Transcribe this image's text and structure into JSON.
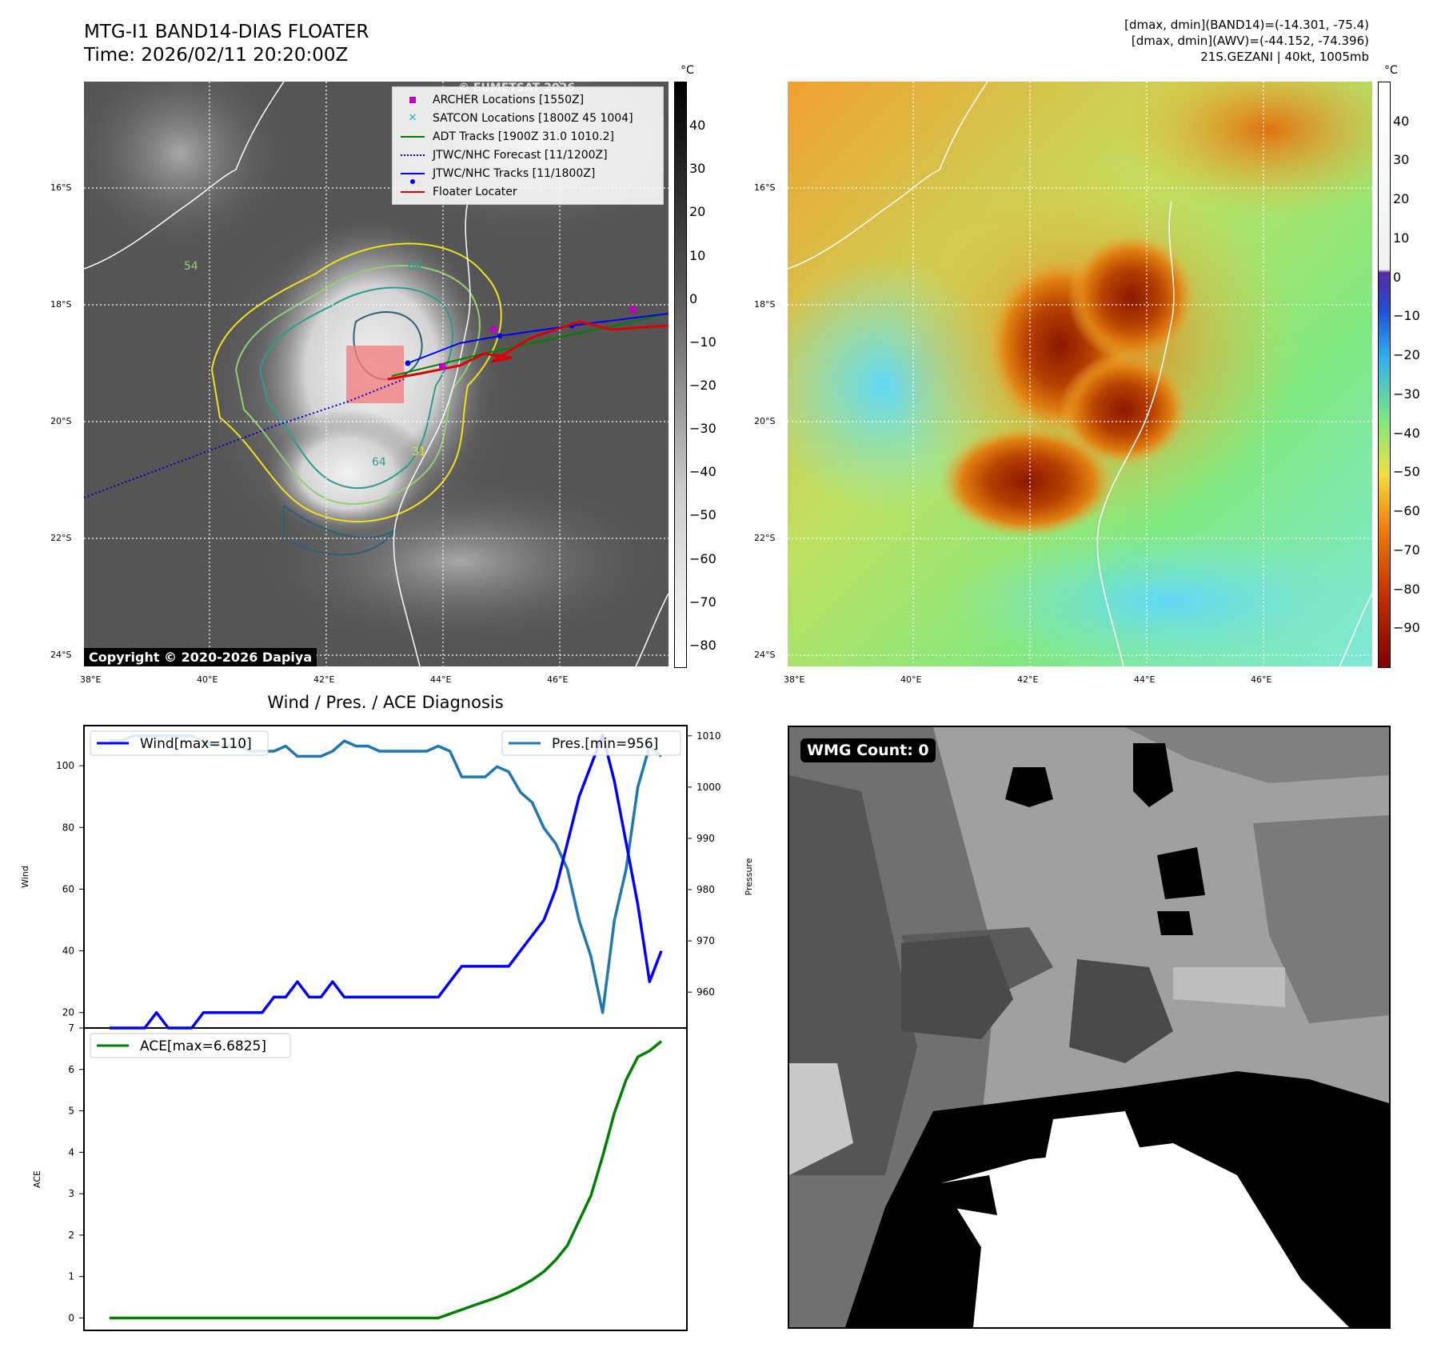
{
  "header": {
    "title": "MTG-I1 BAND14-DIAS FLOATER",
    "time": "Time: 2026/02/11 20:20:00Z",
    "range_band14": "[dmax, dmin](BAND14)=(-14.301, -75.4)",
    "range_awv": "[dmax, dmin](AWV)=(-44.152, -74.396)",
    "storm": "21S.GEZANI | 40kt, 1005mb"
  },
  "maps": {
    "lat_labels": [
      "16°S",
      "18°S",
      "20°S",
      "22°S",
      "24°S"
    ],
    "lon_labels": [
      "38°E",
      "40°E",
      "42°E",
      "44°E",
      "46°E"
    ],
    "contour_labels": [
      "64",
      "54",
      "64",
      "31",
      "54",
      "64",
      "31",
      "54",
      "54"
    ],
    "copyright": "Copyright © 2020-2026 Dapiya",
    "watermark": "© EUMETSAT 2026",
    "legend": [
      {
        "label": "ARCHER Locations [1550Z]",
        "symbol": "square",
        "color": "#c000c0"
      },
      {
        "label": "SATCON Locations [1800Z 45 1004]",
        "symbol": "x",
        "color": "#17becf"
      },
      {
        "label": "ADT Tracks [1900Z 31.0 1010.2]",
        "symbol": "line",
        "color": "#008000"
      },
      {
        "label": "JTWC/NHC Forecast [11/1200Z]",
        "symbol": "dotted",
        "color": "#0000cc"
      },
      {
        "label": "JTWC/NHC Tracks [11/1800Z]",
        "symbol": "line-dot",
        "color": "#0000ff"
      },
      {
        "label": "Floater Locater",
        "symbol": "line",
        "color": "#dd0000"
      }
    ],
    "ir_colorbar": {
      "unit": "°C",
      "ticks": [
        "40",
        "30",
        "20",
        "10",
        "0",
        "−10",
        "−20",
        "−30",
        "−40",
        "−50",
        "−60",
        "−70",
        "−80"
      ]
    },
    "awv_colorbar": {
      "unit": "°C",
      "ticks": [
        "40",
        "30",
        "20",
        "10",
        "0",
        "−10",
        "−20",
        "−30",
        "−40",
        "−50",
        "−60",
        "−70",
        "−80",
        "−90"
      ]
    }
  },
  "diag_title": "Wind / Pres. / ACE Diagnosis",
  "wmg_label": "WMG Count: 0",
  "chart_data": [
    {
      "type": "line",
      "title": "Wind / Pres. / ACE Diagnosis",
      "ylabel": "Wind",
      "ylabel_right": "Pressure",
      "ylim": [
        15,
        113
      ],
      "ylim_right": [
        953,
        1012
      ],
      "yticks": [
        20,
        40,
        60,
        80,
        100
      ],
      "yticks_right": [
        960,
        970,
        980,
        990,
        1000,
        1010
      ],
      "series": [
        {
          "name": "Wind[max=110]",
          "color": "#0000ff",
          "axis": "left",
          "values": [
            15,
            15,
            15,
            15,
            20,
            15,
            15,
            15,
            20,
            20,
            20,
            20,
            20,
            20,
            25,
            25,
            30,
            25,
            25,
            30,
            25,
            25,
            25,
            25,
            25,
            25,
            25,
            25,
            25,
            30,
            35,
            35,
            35,
            35,
            35,
            40,
            45,
            50,
            60,
            75,
            90,
            100,
            110,
            95,
            75,
            55,
            30,
            40
          ]
        },
        {
          "name": "Pres.[min=956]",
          "color": "#1f77b4",
          "axis": "right",
          "values": [
            1009,
            1009,
            1010,
            1010,
            1010,
            1010,
            1010,
            1010,
            1009,
            1008,
            1008,
            1008,
            1007,
            1007,
            1007,
            1008,
            1006,
            1006,
            1006,
            1007,
            1009,
            1008,
            1008,
            1007,
            1007,
            1007,
            1007,
            1007,
            1008,
            1007,
            1002,
            1002,
            1002,
            1004,
            1003,
            999,
            997,
            992,
            989,
            984,
            974,
            967,
            956,
            974,
            984,
            1000,
            1008,
            1006
          ]
        }
      ]
    },
    {
      "type": "line",
      "ylabel": "ACE",
      "ylim": [
        -0.3,
        7.0
      ],
      "yticks": [
        0,
        1,
        2,
        3,
        4,
        5,
        6,
        7
      ],
      "series": [
        {
          "name": "ACE[max=6.6825]",
          "color": "#008000",
          "values": [
            0,
            0,
            0,
            0,
            0,
            0,
            0,
            0,
            0,
            0,
            0,
            0,
            0,
            0,
            0,
            0,
            0,
            0,
            0,
            0,
            0,
            0,
            0,
            0,
            0,
            0,
            0,
            0,
            0,
            0.1,
            0.2,
            0.3,
            0.4,
            0.5,
            0.62,
            0.76,
            0.92,
            1.12,
            1.4,
            1.75,
            2.35,
            2.95,
            3.9,
            4.95,
            5.75,
            6.3,
            6.45,
            6.68
          ]
        }
      ]
    }
  ]
}
